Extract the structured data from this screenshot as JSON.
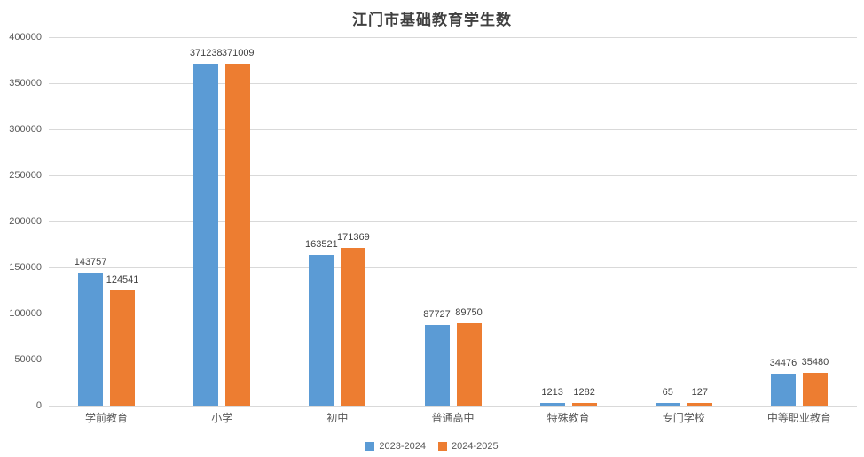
{
  "chart_data": {
    "type": "bar",
    "title": "江门市基础教育学生数",
    "categories": [
      "学前教育",
      "小学",
      "初中",
      "普通高中",
      "特殊教育",
      "专门学校",
      "中等职业教育"
    ],
    "series": [
      {
        "name": "2023-2024",
        "color": "#5B9BD5",
        "values": [
          143757,
          371238,
          163521,
          87727,
          1213,
          65,
          34476
        ]
      },
      {
        "name": "2024-2025",
        "color": "#ED7D31",
        "values": [
          124541,
          371009,
          171369,
          89750,
          1282,
          127,
          35480
        ]
      }
    ],
    "xlabel": "",
    "ylabel": "",
    "ylim": [
      0,
      400000
    ],
    "ytick_step": 50000,
    "ytick_labels": [
      "0",
      "50000",
      "100000",
      "150000",
      "200000",
      "250000",
      "300000",
      "350000",
      "400000"
    ],
    "grid": true,
    "legend_position": "bottom",
    "colors": {
      "grid": "#D9D9D9",
      "axis_text": "#595959",
      "data_label": "#404040",
      "title": "#404040",
      "background": "#FFFFFF"
    }
  }
}
